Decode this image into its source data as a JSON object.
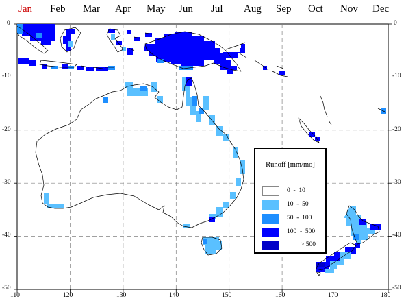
{
  "months": {
    "active": "Jan",
    "items": [
      "Jan",
      "Feb",
      "Mar",
      "Apr",
      "May",
      "Jun",
      "Jul",
      "Aug",
      "Sep",
      "Oct",
      "Nov",
      "Dec"
    ]
  },
  "axes": {
    "x_ticks": [
      "110",
      "120",
      "130",
      "140",
      "150",
      "160",
      "170",
      "180"
    ],
    "y_ticks_left": [
      "0",
      "-10",
      "-20",
      "-30",
      "-40",
      "-50"
    ],
    "y_ticks_right": [
      "0",
      "-10",
      "-20",
      "-30",
      "-40",
      "-50"
    ],
    "x_range": [
      110,
      180
    ],
    "y_range": [
      -50,
      0
    ],
    "grid": "dashed"
  },
  "legend": {
    "title": "Runoff [mm/mo]",
    "classes": [
      {
        "label": "0  -  10",
        "color": "#ffffff"
      },
      {
        "label": "10  -  50",
        "color": "#5ac0ff"
      },
      {
        "label": "50  -  100",
        "color": "#1e8fff"
      },
      {
        "label": "100  -  500",
        "color": "#0000ff"
      },
      {
        "label": "> 500",
        "color": "#0000c8"
      }
    ]
  },
  "colors": {
    "accent_month": "#cc0000",
    "coast": "#000000",
    "grid": "#808080"
  }
}
